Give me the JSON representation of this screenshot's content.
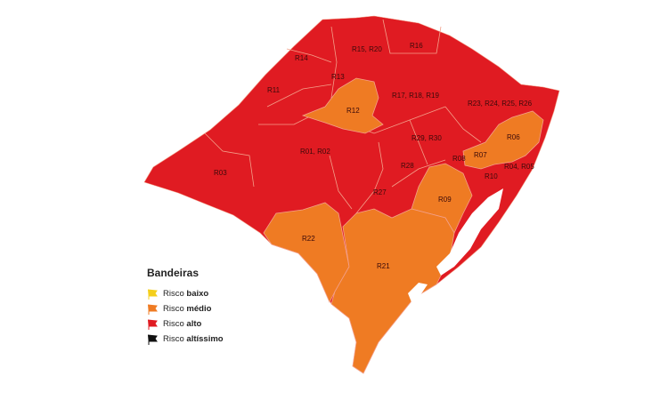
{
  "legend": {
    "title": "Bandeiras",
    "items": [
      {
        "prefix": "Risco",
        "level": "baixo",
        "color": "#f4cf1c",
        "icon": "flag-icon"
      },
      {
        "prefix": "Risco",
        "level": "médio",
        "color": "#ef7b23",
        "icon": "flag-icon"
      },
      {
        "prefix": "Risco",
        "level": "alto",
        "color": "#e01b22",
        "icon": "flag-icon"
      },
      {
        "prefix": "Risco",
        "level": "altíssimo",
        "color": "#111111",
        "icon": "flag-icon"
      }
    ]
  },
  "regions": [
    {
      "label": "R15, R20",
      "risk": "alto"
    },
    {
      "label": "R16",
      "risk": "alto"
    },
    {
      "label": "R14",
      "risk": "alto"
    },
    {
      "label": "R13",
      "risk": "alto"
    },
    {
      "label": "R11",
      "risk": "alto"
    },
    {
      "label": "R12",
      "risk": "médio"
    },
    {
      "label": "R17, R18, R19",
      "risk": "alto"
    },
    {
      "label": "R23, R24, R25, R26",
      "risk": "alto"
    },
    {
      "label": "R06",
      "risk": "médio"
    },
    {
      "label": "R29, R30",
      "risk": "alto"
    },
    {
      "label": "R01, R02",
      "risk": "alto"
    },
    {
      "label": "R07",
      "risk": "médio"
    },
    {
      "label": "R08",
      "risk": "alto"
    },
    {
      "label": "R04, R05",
      "risk": "alto"
    },
    {
      "label": "R03",
      "risk": "alto"
    },
    {
      "label": "R28",
      "risk": "alto"
    },
    {
      "label": "R10",
      "risk": "alto"
    },
    {
      "label": "R27",
      "risk": "alto"
    },
    {
      "label": "R09",
      "risk": "médio"
    },
    {
      "label": "R22",
      "risk": "médio"
    },
    {
      "label": "R21",
      "risk": "médio"
    }
  ]
}
